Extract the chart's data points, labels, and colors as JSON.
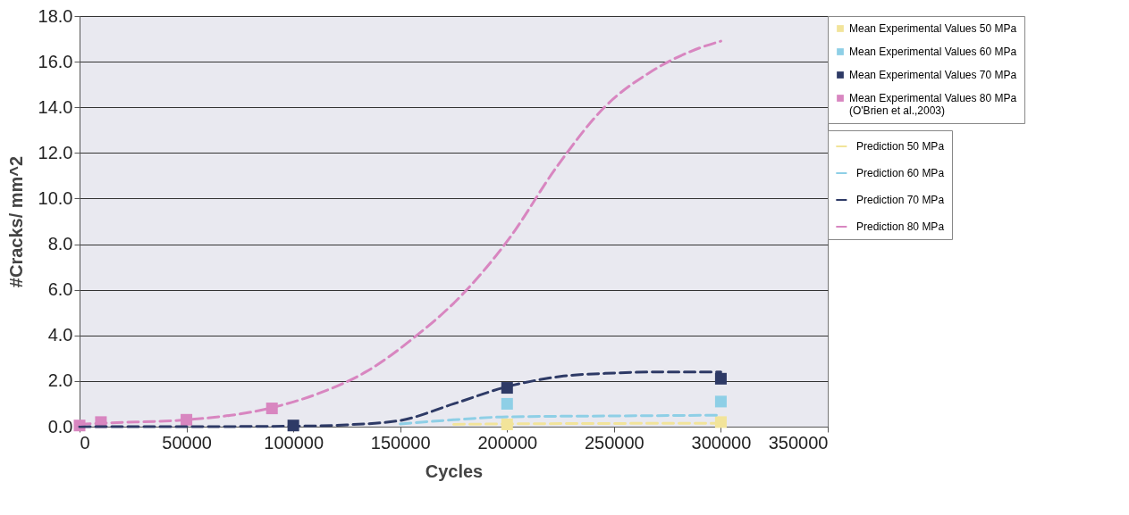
{
  "chart_data": {
    "type": "line",
    "xlabel": "Cycles",
    "ylabel": "#Cracks/ mm^2",
    "xlim": [
      0,
      350000
    ],
    "xticks": [
      0,
      50000,
      100000,
      150000,
      200000,
      250000,
      300000,
      350000
    ],
    "ylim": [
      0,
      18
    ],
    "yticks": [
      {
        "value": 0,
        "label": "0.0"
      },
      {
        "value": 2,
        "label": "2.0"
      },
      {
        "value": 4,
        "label": "4.0"
      },
      {
        "value": 6,
        "label": "6.0"
      },
      {
        "value": 8,
        "label": "8.0"
      },
      {
        "value": 10,
        "label": "10.0"
      },
      {
        "value": 12,
        "label": "12.0"
      },
      {
        "value": 14,
        "label": "14.0"
      },
      {
        "value": 16,
        "label": "16.0"
      },
      {
        "value": 18,
        "label": "18.0"
      }
    ],
    "grid": "y",
    "legend": "right",
    "line_style": "dashed",
    "series": [
      {
        "name": "Prediction 50 MPa",
        "color": "#f2e49a",
        "x": [
          175000,
          200000,
          250000,
          300000
        ],
        "values": [
          0.1,
          0.12,
          0.14,
          0.15
        ]
      },
      {
        "name": "Prediction 60 MPa",
        "color": "#8ecfe6",
        "x": [
          150000,
          175000,
          200000,
          250000,
          300000
        ],
        "values": [
          0.12,
          0.3,
          0.43,
          0.47,
          0.5
        ]
      },
      {
        "name": "Prediction 70 MPa",
        "color": "#2e3a66",
        "x": [
          0,
          50000,
          100000,
          125000,
          150000,
          175000,
          200000,
          225000,
          250000,
          275000,
          300000
        ],
        "values": [
          0,
          0,
          0.02,
          0.08,
          0.27,
          1.0,
          1.75,
          2.2,
          2.35,
          2.4,
          2.4
        ]
      },
      {
        "name": "Prediction 80 MPa",
        "color": "#d886c0",
        "x": [
          0,
          10000,
          50000,
          89500,
          111700,
          133900,
          156400,
          178600,
          201000,
          223300,
          245500,
          268000,
          290000,
          300000
        ],
        "values": [
          0.1,
          0.15,
          0.3,
          0.82,
          1.45,
          2.4,
          3.9,
          5.75,
          8.25,
          11.4,
          14.0,
          15.6,
          16.6,
          16.9
        ]
      },
      {
        "name": "Mean Experimental Values 50 MPa",
        "type": "scatter",
        "marker": "square",
        "color": "#f2e49a",
        "x": [
          200000,
          300000
        ],
        "values": [
          0.1,
          0.2
        ]
      },
      {
        "name": "Mean Experimental Values 60 MPa",
        "type": "scatter",
        "marker": "square",
        "color": "#8ecfe6",
        "x": [
          200000,
          300000
        ],
        "values": [
          1.0,
          1.1
        ]
      },
      {
        "name": "Mean Experimental Values 70 MPa",
        "type": "scatter",
        "marker": "square",
        "color": "#2e3a66",
        "x": [
          100000,
          200000,
          300000
        ],
        "values": [
          0.05,
          1.7,
          2.1
        ]
      },
      {
        "name": "Mean Experimental Values 80 MPa (O'Brien et al.,2003)",
        "type": "scatter",
        "marker": "square",
        "color": "#d886c0",
        "x": [
          0,
          10000,
          50000,
          90000
        ],
        "values": [
          0.05,
          0.2,
          0.3,
          0.8
        ]
      }
    ]
  }
}
